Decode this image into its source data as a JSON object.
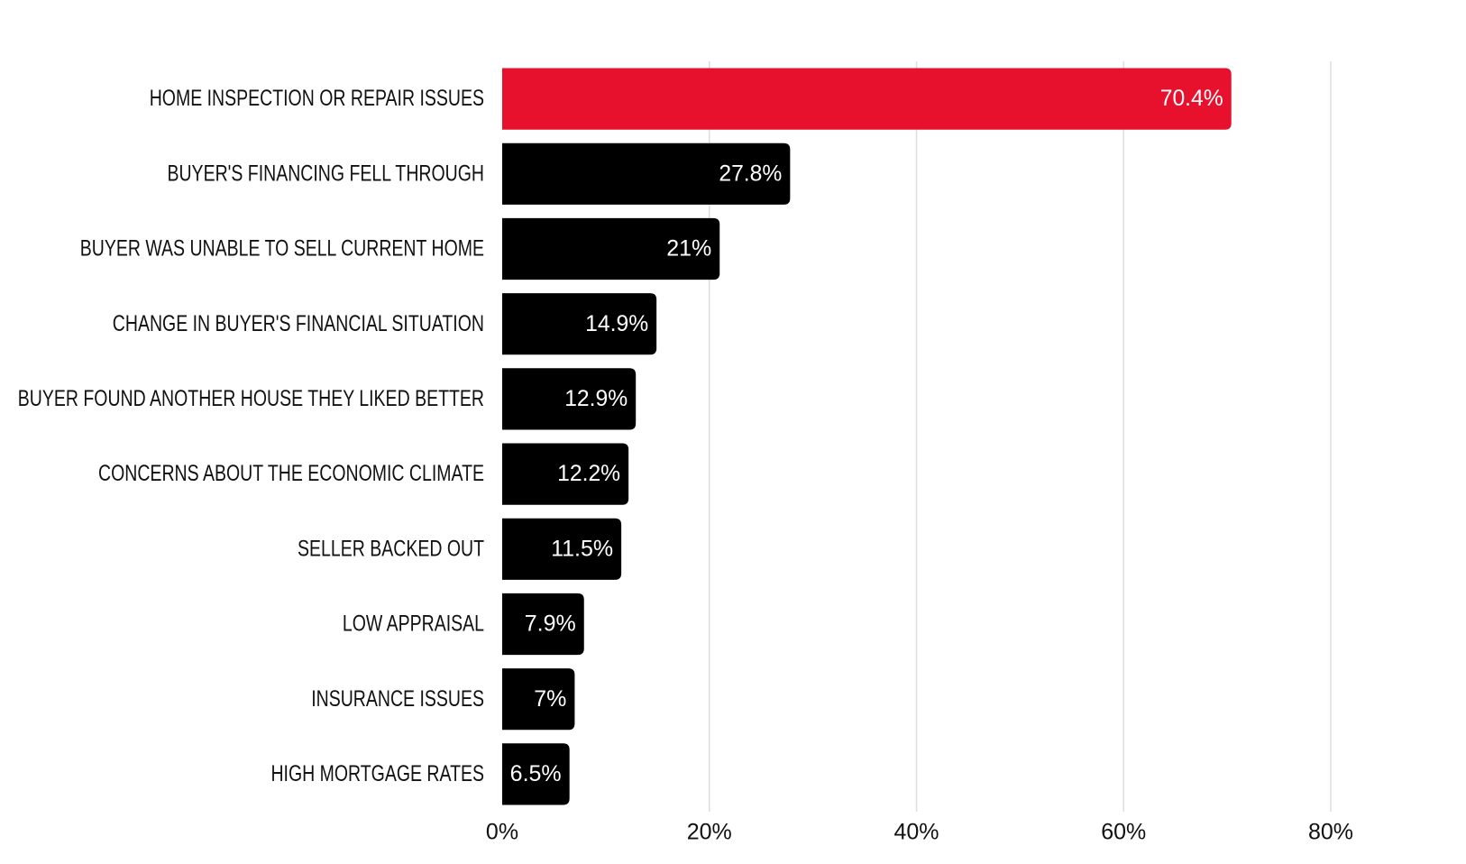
{
  "chart_data": {
    "type": "bar",
    "orientation": "horizontal",
    "categories": [
      "HOME INSPECTION OR REPAIR ISSUES",
      "BUYER'S FINANCING FELL THROUGH",
      "BUYER WAS UNABLE TO SELL CURRENT HOME",
      "CHANGE IN BUYER'S FINANCIAL SITUATION",
      "BUYER FOUND ANOTHER HOUSE THEY LIKED BETTER",
      "CONCERNS ABOUT THE ECONOMIC CLIMATE",
      "SELLER BACKED OUT",
      "LOW APPRAISAL",
      "INSURANCE ISSUES",
      "HIGH MORTGAGE RATES"
    ],
    "values": [
      70.4,
      27.8,
      21,
      14.9,
      12.9,
      12.2,
      11.5,
      7.9,
      7,
      6.5
    ],
    "value_labels": [
      "70.4%",
      "27.8%",
      "21%",
      "14.9%",
      "12.9%",
      "12.2%",
      "11.5%",
      "7.9%",
      "7%",
      "6.5%"
    ],
    "colors": [
      "#e8112d",
      "#000000",
      "#000000",
      "#000000",
      "#000000",
      "#000000",
      "#000000",
      "#000000",
      "#000000",
      "#000000"
    ],
    "xlim": [
      0,
      80
    ],
    "xticks": [
      {
        "value": 0,
        "label": "0%"
      },
      {
        "value": 20,
        "label": "20%"
      },
      {
        "value": 40,
        "label": "40%"
      },
      {
        "value": 60,
        "label": "60%"
      },
      {
        "value": 80,
        "label": "80%"
      }
    ],
    "grid": true
  }
}
